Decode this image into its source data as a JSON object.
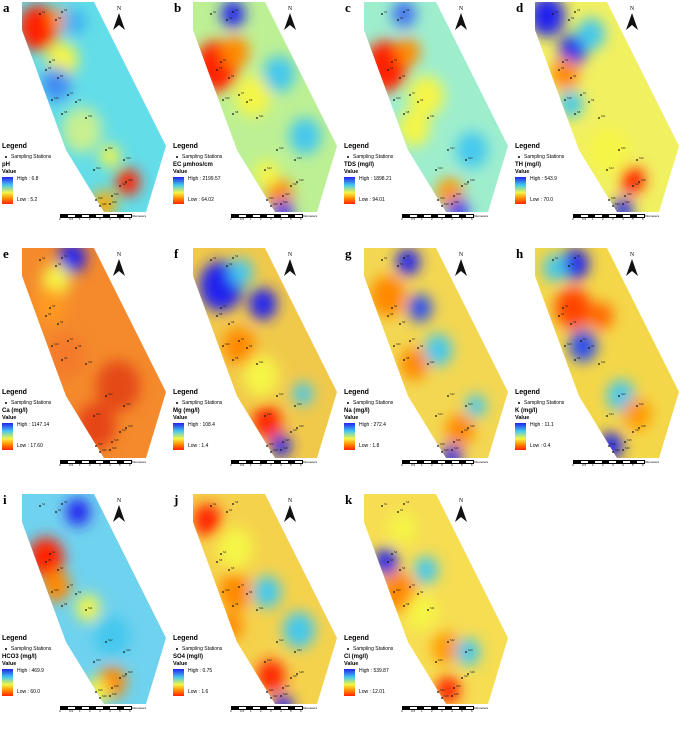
{
  "legend_title": "Legend",
  "stations_label": "Sampling Stations",
  "value_label": "Value",
  "scale": {
    "ticks": [
      "0",
      "0.5",
      "1",
      "2",
      "3",
      "4",
      "5",
      "6"
    ],
    "unit": "Kilometers"
  },
  "north_label": "N",
  "panels": [
    {
      "letter": "a",
      "param": "pH",
      "high": "High : 6.8",
      "low": "Low : 5.2",
      "pattern": "a"
    },
    {
      "letter": "b",
      "param": "EC µmhos/cm",
      "high": "High : 2199.57",
      "low": "Low : 64.02",
      "pattern": "b"
    },
    {
      "letter": "c",
      "param": "TDS (mg/l)",
      "high": "High : 1898.21",
      "low": "Low : 94.01",
      "pattern": "c"
    },
    {
      "letter": "d",
      "param": "TH (mg/l)",
      "high": "High : 543.9",
      "low": "Low : 70.0",
      "pattern": "d"
    },
    {
      "letter": "e",
      "param": "Ca (mg/l)",
      "high": "High : 1147.14",
      "low": "Low : 17.60",
      "pattern": "e"
    },
    {
      "letter": "f",
      "param": "Mg (mg/l)",
      "high": "High : 108.4",
      "low": "Low : 1.4",
      "pattern": "f"
    },
    {
      "letter": "g",
      "param": "Na (mg/l)",
      "high": "High : 272.4",
      "low": "Low : 1.8",
      "pattern": "g"
    },
    {
      "letter": "h",
      "param": "K (mg/l)",
      "high": "High : 11.1",
      "low": "Low : 0.4",
      "pattern": "h"
    },
    {
      "letter": "i",
      "param": "HCO3 (mg/l)",
      "high": "High : 469.9",
      "low": "Low : 60.0",
      "pattern": "i"
    },
    {
      "letter": "j",
      "param": "SO4 (mg/l)",
      "high": "High : 0.75",
      "low": "Low : 1.6",
      "pattern": "j"
    },
    {
      "letter": "k",
      "param": "Cl (mg/l)",
      "high": "High : 539.87",
      "low": "Low : 12.01",
      "pattern": "k"
    }
  ],
  "colors": {
    "high": "#2222ee",
    "mid_high": "#44c8ee",
    "mid": "#f5f546",
    "mid_low": "#ff8800",
    "low": "#ff2200"
  }
}
